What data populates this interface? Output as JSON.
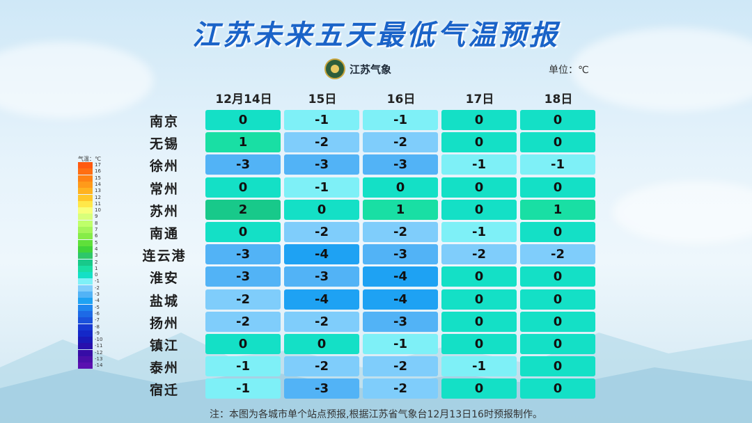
{
  "title": "江苏未来五天最低气温预报",
  "logo_text": "江苏气象",
  "unit": "单位：℃",
  "legend_title": "气温：℃",
  "note": "注：本图为各城市单个站点预报,根据江苏省气象台12月13日16时预报制作。",
  "colors": {
    "title": "#1a63c8",
    "scale": {
      "2": "#18c98a",
      "1": "#19dfa4",
      "0": "#14e0c6",
      "-1": "#7ef0f7",
      "-2": "#7fcdfb",
      "-3": "#52b3f6",
      "-4": "#1ea2f3"
    }
  },
  "legend": [
    {
      "v": "17",
      "c": "#ff5a10"
    },
    {
      "v": "16",
      "c": "#ff6e12"
    },
    {
      "v": "15",
      "c": "#ff8214"
    },
    {
      "v": "14",
      "c": "#ff9a1a"
    },
    {
      "v": "13",
      "c": "#ffb220"
    },
    {
      "v": "12",
      "c": "#ffc72a"
    },
    {
      "v": "11",
      "c": "#ffe84a"
    },
    {
      "v": "10",
      "c": "#f7ff7a"
    },
    {
      "v": "9",
      "c": "#d8ff7a"
    },
    {
      "v": "8",
      "c": "#bfff6a"
    },
    {
      "v": "7",
      "c": "#a4f55a"
    },
    {
      "v": "6",
      "c": "#86ec48"
    },
    {
      "v": "5",
      "c": "#5fe03a"
    },
    {
      "v": "4",
      "c": "#3fd43a"
    },
    {
      "v": "3",
      "c": "#2ec76a"
    },
    {
      "v": "2",
      "c": "#18c98a"
    },
    {
      "v": "1",
      "c": "#19dfa4"
    },
    {
      "v": "0",
      "c": "#14e0c6"
    },
    {
      "v": "-1",
      "c": "#7ef0f7"
    },
    {
      "v": "-2",
      "c": "#7fcdfb"
    },
    {
      "v": "-3",
      "c": "#52b3f6"
    },
    {
      "v": "-4",
      "c": "#1ea2f3"
    },
    {
      "v": "-5",
      "c": "#1f86ef"
    },
    {
      "v": "-6",
      "c": "#1d6ae6"
    },
    {
      "v": "-7",
      "c": "#1a52dc"
    },
    {
      "v": "-8",
      "c": "#1638d2"
    },
    {
      "v": "-9",
      "c": "#1428c8"
    },
    {
      "v": "-10",
      "c": "#1a1ab8"
    },
    {
      "v": "-11",
      "c": "#2810ad"
    },
    {
      "v": "-12",
      "c": "#360ca6"
    },
    {
      "v": "-13",
      "c": "#4a0ea8"
    },
    {
      "v": "-14",
      "c": "#5a10b0"
    }
  ],
  "chart_data": {
    "type": "heatmap",
    "title": "江苏未来五天最低气温预报",
    "columns": [
      "12月14日",
      "15日",
      "16日",
      "17日",
      "18日"
    ],
    "rows": [
      {
        "city": "南京",
        "values": [
          0,
          -1,
          -1,
          0,
          0
        ]
      },
      {
        "city": "无锡",
        "values": [
          1,
          -2,
          -2,
          0,
          0
        ]
      },
      {
        "city": "徐州",
        "values": [
          -3,
          -3,
          -3,
          -1,
          -1
        ]
      },
      {
        "city": "常州",
        "values": [
          0,
          -1,
          0,
          0,
          0
        ]
      },
      {
        "city": "苏州",
        "values": [
          2,
          0,
          1,
          0,
          1
        ]
      },
      {
        "city": "南通",
        "values": [
          0,
          -2,
          -2,
          -1,
          0
        ]
      },
      {
        "city": "连云港",
        "values": [
          -3,
          -4,
          -3,
          -2,
          -2
        ]
      },
      {
        "city": "淮安",
        "values": [
          -3,
          -3,
          -4,
          0,
          0
        ]
      },
      {
        "city": "盐城",
        "values": [
          -2,
          -4,
          -4,
          0,
          0
        ]
      },
      {
        "city": "扬州",
        "values": [
          -2,
          -2,
          -3,
          0,
          0
        ]
      },
      {
        "city": "镇江",
        "values": [
          0,
          0,
          -1,
          0,
          0
        ]
      },
      {
        "city": "泰州",
        "values": [
          -1,
          -2,
          -2,
          -1,
          0
        ]
      },
      {
        "city": "宿迁",
        "values": [
          -1,
          -3,
          -2,
          0,
          0
        ]
      }
    ]
  }
}
